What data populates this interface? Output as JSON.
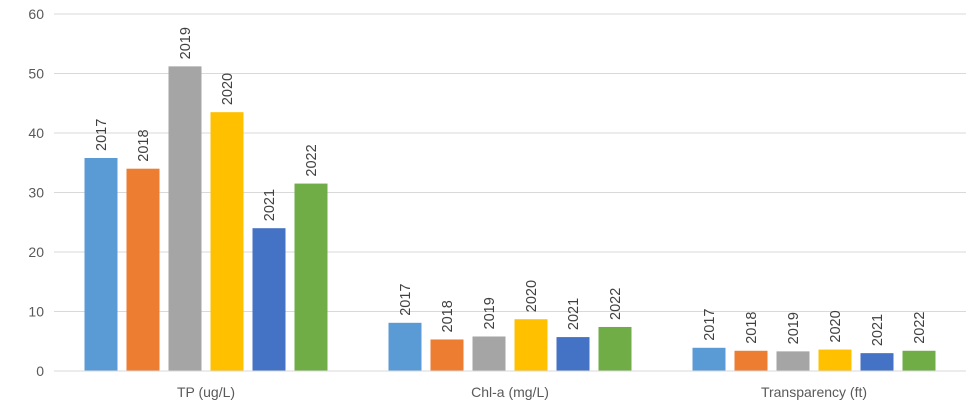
{
  "chart_data": {
    "type": "bar",
    "categories": [
      "TP (ug/L)",
      "Chl-a (mg/L)",
      "Transparency (ft)"
    ],
    "series": [
      {
        "name": "2017",
        "color": "#5B9BD5",
        "values": [
          35.8,
          8.1,
          3.9
        ]
      },
      {
        "name": "2018",
        "color": "#ED7D31",
        "values": [
          34.0,
          5.3,
          3.4
        ]
      },
      {
        "name": "2019",
        "color": "#A5A5A5",
        "values": [
          51.2,
          5.8,
          3.3
        ]
      },
      {
        "name": "2020",
        "color": "#FFC000",
        "values": [
          43.5,
          8.7,
          3.6
        ]
      },
      {
        "name": "2021",
        "color": "#4472C4",
        "values": [
          24.0,
          5.7,
          3.0
        ]
      },
      {
        "name": "2022",
        "color": "#70AD47",
        "values": [
          31.5,
          7.4,
          3.4
        ]
      }
    ],
    "data_labels": "series name",
    "ylim": [
      0,
      60
    ],
    "yticks": [
      0,
      10,
      20,
      30,
      40,
      50,
      60
    ],
    "grid": true,
    "gridline_color": "#D9D9D9",
    "legend": "none"
  }
}
